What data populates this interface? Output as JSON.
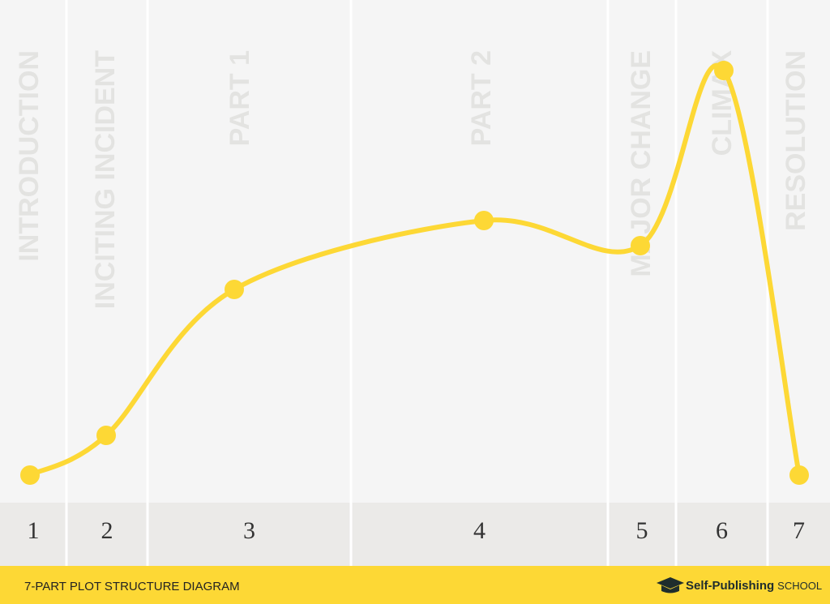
{
  "sections": [
    {
      "label": "INTRODUCTION",
      "number": "1"
    },
    {
      "label": "INCITING INCIDENT",
      "number": "2"
    },
    {
      "label": "PART 1",
      "number": "3"
    },
    {
      "label": "PART 2",
      "number": "4"
    },
    {
      "label": "MAJOR CHANGE",
      "number": "5"
    },
    {
      "label": "CLIMAX",
      "number": "6"
    },
    {
      "label": "RESOLUTION",
      "number": "7"
    }
  ],
  "footer": {
    "title": "7-PART PLOT STRUCTURE DIAGRAM",
    "brand": "Self-Publishing",
    "brand_suffix": "SCHOOL"
  }
}
